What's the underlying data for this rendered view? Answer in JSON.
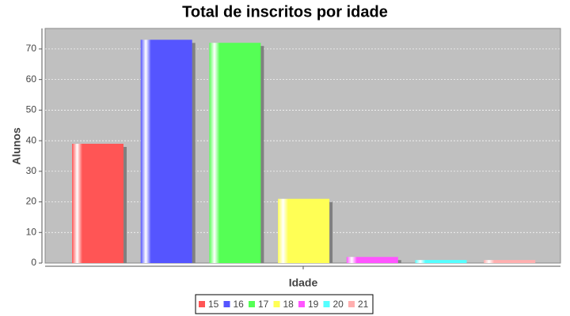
{
  "chart_data": {
    "type": "bar",
    "title": "Total de inscritos por idade",
    "x_label": "Idade",
    "y_label": "Alunos",
    "categories": [
      null
    ],
    "series": [
      {
        "name": "15",
        "color": "#ff5555",
        "values": [
          39
        ]
      },
      {
        "name": "16",
        "color": "#5555ff",
        "values": [
          73
        ]
      },
      {
        "name": "17",
        "color": "#55ff55",
        "values": [
          72
        ]
      },
      {
        "name": "18",
        "color": "#ffff55",
        "values": [
          21
        ]
      },
      {
        "name": "19",
        "color": "#ff55ff",
        "values": [
          2
        ]
      },
      {
        "name": "20",
        "color": "#55ffff",
        "values": [
          1
        ]
      },
      {
        "name": "21",
        "color": "#ffafaf",
        "values": [
          1
        ]
      }
    ],
    "ylim": [
      0,
      76.7
    ],
    "yticks": [
      0,
      10,
      20,
      30,
      40,
      50,
      60,
      70
    ],
    "grid": true,
    "legend": "bottom"
  }
}
